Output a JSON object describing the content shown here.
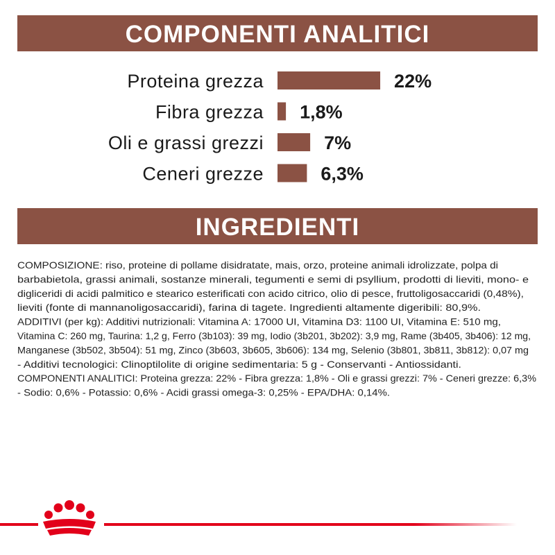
{
  "header": {
    "title": "COMPONENTI ANALITICI"
  },
  "chart_data": {
    "type": "bar",
    "orientation": "horizontal",
    "categories": [
      "Proteina grezza",
      "Fibra grezza",
      "Oli e grassi grezzi",
      "Ceneri grezze"
    ],
    "values": [
      22,
      1.8,
      7,
      6.3
    ],
    "value_labels": [
      "22%",
      "1,8%",
      "7%",
      "6,3%"
    ],
    "color": "#8b5244"
  },
  "ingredients": {
    "title": "INGREDIENTI",
    "lines": [
      "COMPOSIZIONE: riso, proteine di pollame disidratate, mais, orzo, proteine animali idrolizzate, polpa di",
      "barbabietola, grassi animali, sostanze minerali, tegumenti e semi di psyllium, prodotti di lieviti, mono- e",
      "digliceridi di acidi palmitico e stearico esterificati con acido citrico, olio di pesce, fruttoligosaccaridi (0,48%),",
      "lieviti (fonte di mannanoligosaccaridi), farina di tagete. Ingredienti altamente digeribili: 80,9%.",
      "ADDITIVI (per kg): Additivi nutrizionali: Vitamina A: 17000 UI, Vitamina D3: 1100 UI, Vitamina E: 510 mg,",
      "Vitamina C: 260 mg, Taurina: 1,2 g, Ferro (3b103): 39 mg, Iodio (3b201, 3b202): 3,9 mg, Rame (3b405, 3b406): 12 mg,",
      "Manganese (3b502, 3b504): 51 mg, Zinco (3b603, 3b605, 3b606): 134 mg, Selenio (3b801, 3b811, 3b812): 0,07 mg",
      "- Additivi tecnologici: Clinoptilolite di origine sedimentaria: 5 g - Conservanti - Antiossidanti.",
      "COMPONENTI ANALITICI: Proteina grezza: 22% - Fibra grezza: 1,8% - Oli e grassi grezzi: 7% - Ceneri grezze: 6,3%",
      "- Sodio: 0,6% - Potassio: 0,6% - Acidi grassi omega-3: 0,25% - EPA/DHA: 0,14%."
    ]
  }
}
